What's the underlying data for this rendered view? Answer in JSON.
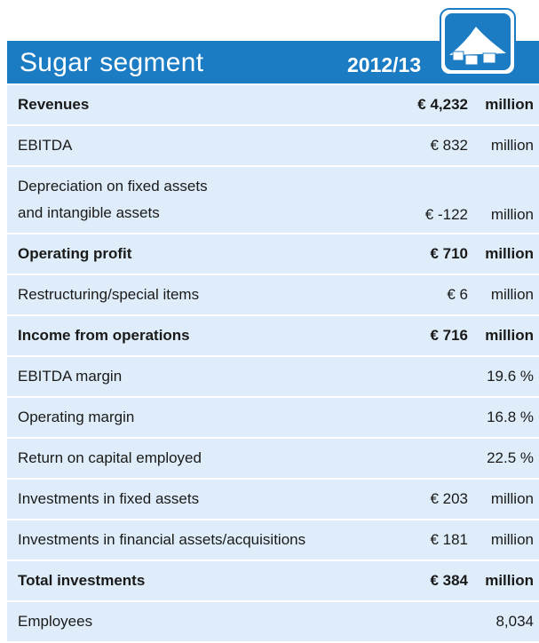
{
  "header": {
    "title": "Sugar segment",
    "year": "2012/13"
  },
  "table": {
    "rows": [
      {
        "label": "Revenues",
        "value": "€ 4,232",
        "unit": "million",
        "bold": true
      },
      {
        "label": "EBITDA",
        "value": "€ 832",
        "unit": "million",
        "bold": false
      },
      {
        "label": [
          "Depreciation on fixed assets",
          "and intangible assets"
        ],
        "value": "€ -122",
        "unit": "million",
        "bold": false
      },
      {
        "label": "Operating profit",
        "value": "€ 710",
        "unit": "million",
        "bold": true
      },
      {
        "label": "Restructuring/special items",
        "value": "€ 6",
        "unit": "million",
        "bold": false
      },
      {
        "label": "Income from operations",
        "value": "€ 716",
        "unit": "million",
        "bold": true
      },
      {
        "label": "EBITDA margin",
        "value": "19.6 %",
        "bold": false
      },
      {
        "label": "Operating margin",
        "value": "16.8 %",
        "bold": false
      },
      {
        "label": "Return on capital employed",
        "value": "22.5 %",
        "bold": false
      },
      {
        "label": "Investments in fixed assets",
        "value": "€ 203",
        "unit": "million",
        "bold": false
      },
      {
        "label": "Investments in financial assets/acquisitions",
        "value": "€ 181",
        "unit": "million",
        "bold": false
      },
      {
        "label": "Total investments",
        "value": "€ 384",
        "unit": "million",
        "bold": true
      },
      {
        "label": "Employees",
        "value": "8,034",
        "bold": false
      }
    ]
  }
}
